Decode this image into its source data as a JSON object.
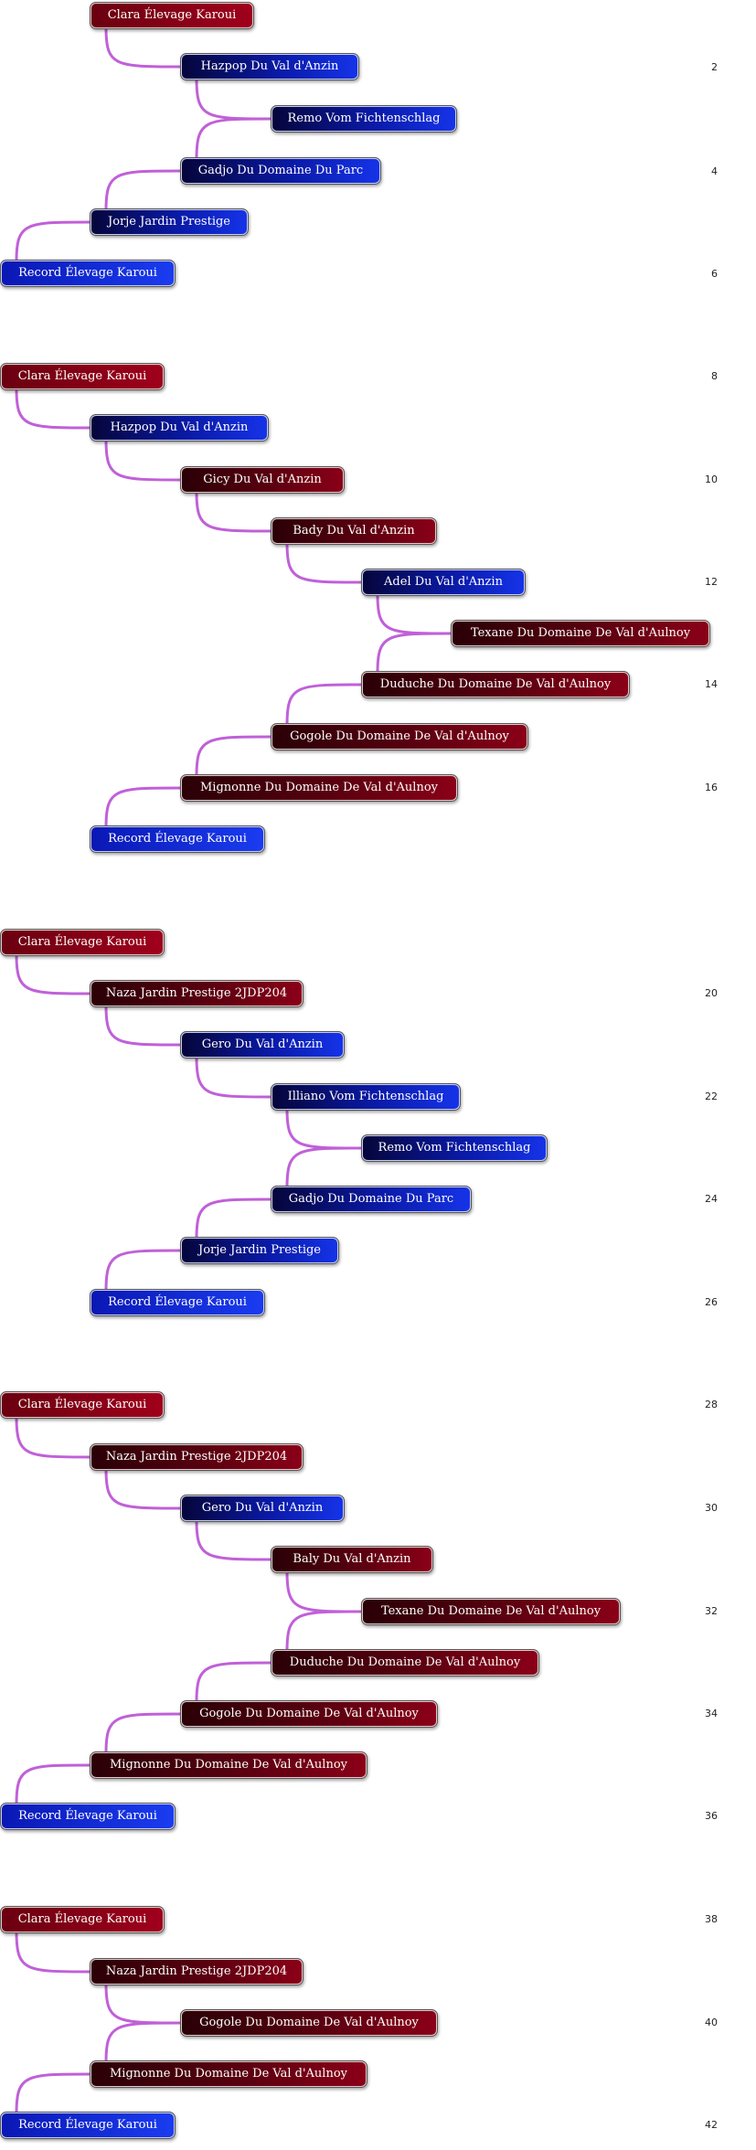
{
  "colors": {
    "link": "#c060d8",
    "female": "#8a0018",
    "male": "#1533e8"
  },
  "icons": {
    "connector": "curved-link-line"
  },
  "trees": [
    {
      "nodes": [
        {
          "label": "Clara Élevage Karoui",
          "sex": "female"
        },
        {
          "label": "Hazpop Du Val d'Anzin",
          "sex": "male"
        },
        {
          "label": "Remo Vom Fichtenschlag",
          "sex": "male"
        },
        {
          "label": "Gadjo Du Domaine Du Parc",
          "sex": "male"
        },
        {
          "label": "Jorje Jardin Prestige",
          "sex": "male"
        },
        {
          "label": "Record Élevage Karoui",
          "sex": "male"
        }
      ],
      "page_numbers": [
        "2",
        "4",
        "6"
      ]
    },
    {
      "nodes": [
        {
          "label": "Clara Élevage Karoui",
          "sex": "female"
        },
        {
          "label": "Hazpop Du Val d'Anzin",
          "sex": "male"
        },
        {
          "label": "Gicy Du Val d'Anzin",
          "sex": "female"
        },
        {
          "label": "Bady Du Val d'Anzin",
          "sex": "female"
        },
        {
          "label": "Adel Du Val d'Anzin",
          "sex": "male"
        },
        {
          "label": "Texane Du Domaine De Val d'Aulnoy",
          "sex": "female"
        },
        {
          "label": "Duduche Du Domaine De Val d'Aulnoy",
          "sex": "female"
        },
        {
          "label": "Gogole Du Domaine De Val d'Aulnoy",
          "sex": "female"
        },
        {
          "label": "Mignonne Du Domaine De Val d'Aulnoy",
          "sex": "female"
        },
        {
          "label": "Record Élevage Karoui",
          "sex": "male"
        }
      ],
      "page_numbers": [
        "8",
        "10",
        "12",
        "14",
        "16"
      ]
    },
    {
      "nodes": [
        {
          "label": "Clara Élevage Karoui",
          "sex": "female"
        },
        {
          "label": "Naza Jardin Prestige  2JDP204",
          "sex": "female"
        },
        {
          "label": "Gero Du Val d'Anzin",
          "sex": "male"
        },
        {
          "label": "Illiano Vom Fichtenschlag",
          "sex": "male"
        },
        {
          "label": "Remo Vom Fichtenschlag",
          "sex": "male"
        },
        {
          "label": "Gadjo Du Domaine Du Parc",
          "sex": "male"
        },
        {
          "label": "Jorje Jardin Prestige",
          "sex": "male"
        },
        {
          "label": "Record Élevage Karoui",
          "sex": "male"
        }
      ],
      "page_numbers": [
        "20",
        "22",
        "24",
        "26"
      ]
    },
    {
      "nodes": [
        {
          "label": "Clara Élevage Karoui",
          "sex": "female"
        },
        {
          "label": "Naza Jardin Prestige  2JDP204",
          "sex": "female"
        },
        {
          "label": "Gero Du Val d'Anzin",
          "sex": "male"
        },
        {
          "label": "Baly Du Val d'Anzin",
          "sex": "female"
        },
        {
          "label": "Texane Du Domaine De Val d'Aulnoy",
          "sex": "female"
        },
        {
          "label": "Duduche Du Domaine De Val d'Aulnoy",
          "sex": "female"
        },
        {
          "label": "Gogole Du Domaine De Val d'Aulnoy",
          "sex": "female"
        },
        {
          "label": "Mignonne Du Domaine De Val d'Aulnoy",
          "sex": "female"
        },
        {
          "label": "Record Élevage Karoui",
          "sex": "male"
        }
      ],
      "page_numbers": [
        "28",
        "30",
        "32",
        "34",
        "36"
      ]
    },
    {
      "nodes": [
        {
          "label": "Clara Élevage Karoui",
          "sex": "female"
        },
        {
          "label": "Naza Jardin Prestige  2JDP204",
          "sex": "female"
        },
        {
          "label": "Gogole Du Domaine De Val d'Aulnoy",
          "sex": "female"
        },
        {
          "label": "Mignonne Du Domaine De Val d'Aulnoy",
          "sex": "female"
        },
        {
          "label": "Record Élevage Karoui",
          "sex": "male"
        }
      ],
      "page_numbers": [
        "38",
        "40",
        "42"
      ]
    }
  ]
}
